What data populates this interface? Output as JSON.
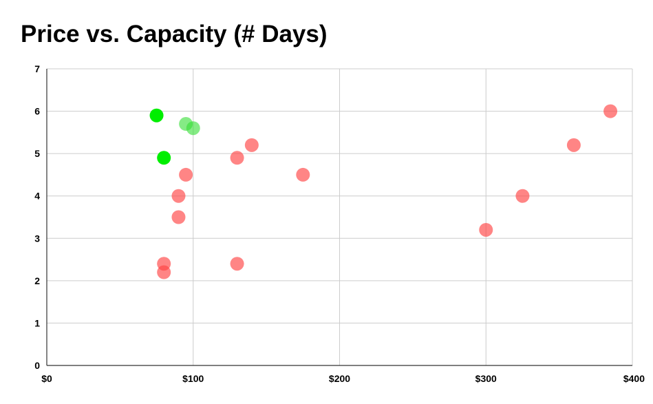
{
  "chart_data": {
    "type": "scatter",
    "title": "Price vs. Capacity (# Days)",
    "xlabel": "",
    "ylabel": "",
    "xlim": [
      0,
      400
    ],
    "ylim": [
      0,
      7
    ],
    "x_ticks": [
      0,
      100,
      200,
      300,
      400
    ],
    "x_tick_labels": [
      "$0",
      "$100",
      "$200",
      "$300",
      "$400"
    ],
    "y_ticks": [
      0,
      1,
      2,
      3,
      4,
      5,
      6,
      7
    ],
    "y_tick_labels": [
      "0",
      "1",
      "2",
      "3",
      "4",
      "5",
      "6",
      "7"
    ],
    "grid": true,
    "legend": "none",
    "points": [
      {
        "x": 75,
        "y": 5.9,
        "color": "#00ee00",
        "opacity": 1.0
      },
      {
        "x": 80,
        "y": 4.9,
        "color": "#00ee00",
        "opacity": 1.0
      },
      {
        "x": 95,
        "y": 5.7,
        "color": "#33dd33",
        "opacity": 0.6
      },
      {
        "x": 100,
        "y": 5.6,
        "color": "#33dd33",
        "opacity": 0.6
      },
      {
        "x": 95,
        "y": 4.5,
        "color": "#ff4444",
        "opacity": 0.65
      },
      {
        "x": 90,
        "y": 4.0,
        "color": "#ff4444",
        "opacity": 0.65
      },
      {
        "x": 90,
        "y": 3.5,
        "color": "#ff4444",
        "opacity": 0.65
      },
      {
        "x": 80,
        "y": 2.4,
        "color": "#ff4444",
        "opacity": 0.65
      },
      {
        "x": 80,
        "y": 2.2,
        "color": "#ff4444",
        "opacity": 0.65
      },
      {
        "x": 130,
        "y": 4.9,
        "color": "#ff4444",
        "opacity": 0.65
      },
      {
        "x": 140,
        "y": 5.2,
        "color": "#ff4444",
        "opacity": 0.65
      },
      {
        "x": 130,
        "y": 2.4,
        "color": "#ff4444",
        "opacity": 0.65
      },
      {
        "x": 175,
        "y": 4.5,
        "color": "#ff4444",
        "opacity": 0.65
      },
      {
        "x": 300,
        "y": 3.2,
        "color": "#ff4444",
        "opacity": 0.65
      },
      {
        "x": 325,
        "y": 4.0,
        "color": "#ff4444",
        "opacity": 0.65
      },
      {
        "x": 360,
        "y": 5.2,
        "color": "#ff4444",
        "opacity": 0.65
      },
      {
        "x": 385,
        "y": 6.0,
        "color": "#ff4444",
        "opacity": 0.65
      }
    ]
  }
}
